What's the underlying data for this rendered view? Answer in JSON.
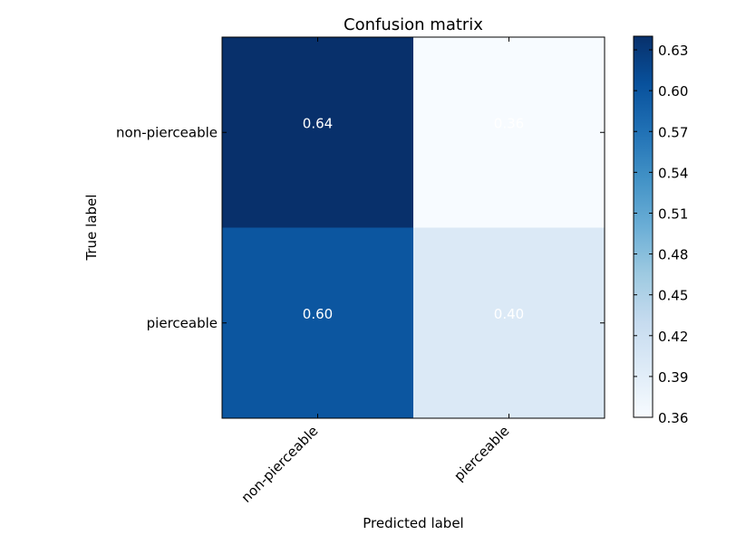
{
  "chart_data": {
    "type": "heatmap",
    "title": "Confusion matrix",
    "xlabel": "Predicted label",
    "ylabel": "True label",
    "x_categories": [
      "non-pierceable",
      "pierceable"
    ],
    "y_categories": [
      "non-pierceable",
      "pierceable"
    ],
    "values": [
      [
        0.64,
        0.36
      ],
      [
        0.6,
        0.4
      ]
    ],
    "value_labels": [
      [
        "0.64",
        "0.36"
      ],
      [
        "0.60",
        "0.40"
      ]
    ],
    "colormap": "Blues",
    "color_range": [
      0.36,
      0.64
    ],
    "colorbar_ticks": [
      "0.36",
      "0.39",
      "0.42",
      "0.45",
      "0.48",
      "0.51",
      "0.54",
      "0.57",
      "0.60",
      "0.63"
    ],
    "grid": false
  }
}
